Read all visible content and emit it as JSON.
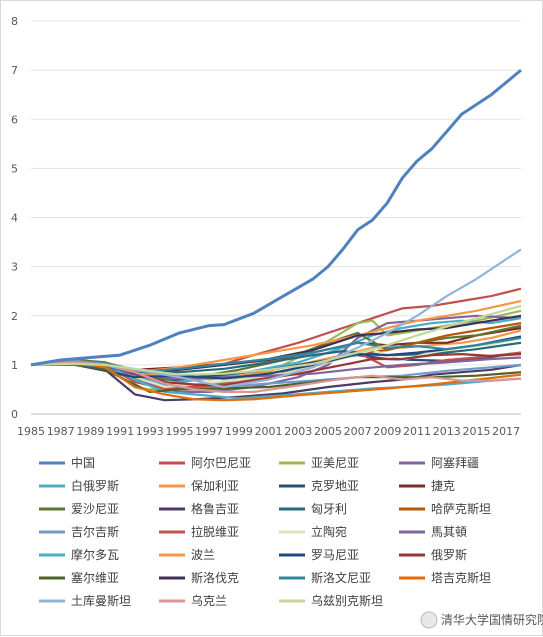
{
  "chart_data": {
    "type": "line",
    "title": "",
    "xlabel": "",
    "ylabel": "",
    "xlim": [
      1985,
      2018
    ],
    "ylim": [
      0,
      8
    ],
    "y_ticks": [
      0,
      1,
      2,
      3,
      4,
      5,
      6,
      7,
      8
    ],
    "x_tick_labels": [
      "1985",
      "1987",
      "1989",
      "1991",
      "1993",
      "1995",
      "1997",
      "1999",
      "2001",
      "2003",
      "2005",
      "2007",
      "2009",
      "2011",
      "2013",
      "2015",
      "2017"
    ],
    "grid": "horizontal",
    "legend_position": "bottom",
    "series": [
      {
        "name": "中国",
        "color": "#4f81bd",
        "x": [
          1985,
          1987,
          1989,
          1991,
          1993,
          1995,
          1997,
          1998,
          2000,
          2002,
          2004,
          2005,
          2006,
          2007,
          2008,
          2009,
          2010,
          2011,
          2012,
          2013,
          2014,
          2015,
          2016,
          2017,
          2018
        ],
        "y": [
          1.0,
          1.1,
          1.15,
          1.2,
          1.4,
          1.65,
          1.8,
          1.82,
          2.05,
          2.4,
          2.75,
          3.0,
          3.35,
          3.75,
          3.95,
          4.3,
          4.8,
          5.15,
          5.4,
          5.75,
          6.1,
          6.3,
          6.5,
          6.75,
          7.0
        ]
      },
      {
        "name": "阿尔巴尼亚",
        "color": "#c0504d",
        "x": [
          1985,
          1988,
          1990,
          1992,
          1994,
          1996,
          1998,
          2000,
          2003,
          2006,
          2008,
          2010,
          2012,
          2014,
          2016,
          2018
        ],
        "y": [
          1.0,
          1.05,
          1.0,
          0.72,
          0.82,
          0.98,
          1.02,
          1.2,
          1.45,
          1.75,
          1.95,
          2.15,
          2.2,
          2.3,
          2.4,
          2.55
        ]
      },
      {
        "name": "亚美尼亚",
        "color": "#9bbb59",
        "x": [
          1985,
          1988,
          1990,
          1992,
          1993,
          1995,
          1998,
          2001,
          2004,
          2007,
          2008,
          2009,
          2011,
          2013,
          2015,
          2018
        ],
        "y": [
          1.0,
          1.1,
          0.98,
          0.55,
          0.5,
          0.55,
          0.65,
          0.85,
          1.3,
          1.85,
          1.9,
          1.6,
          1.7,
          1.8,
          1.9,
          2.1
        ]
      },
      {
        "name": "阿塞拜疆",
        "color": "#8064a2",
        "x": [
          1985,
          1988,
          1990,
          1992,
          1995,
          1997,
          2000,
          2003,
          2005,
          2007,
          2009,
          2011,
          2013,
          2015,
          2018
        ],
        "y": [
          1.0,
          1.05,
          0.95,
          0.7,
          0.45,
          0.45,
          0.55,
          0.75,
          1.0,
          1.55,
          1.85,
          1.9,
          1.95,
          2.0,
          1.95
        ]
      },
      {
        "name": "白俄罗斯",
        "color": "#4bacc6",
        "x": [
          1985,
          1988,
          1990,
          1992,
          1995,
          1997,
          2000,
          2003,
          2006,
          2008,
          2010,
          2012,
          2014,
          2016,
          2018
        ],
        "y": [
          1.0,
          1.1,
          1.05,
          0.9,
          0.65,
          0.72,
          0.88,
          1.05,
          1.35,
          1.6,
          1.75,
          1.85,
          1.9,
          1.85,
          1.95
        ]
      },
      {
        "name": "保加利亚",
        "color": "#f79646",
        "x": [
          1985,
          1988,
          1990,
          1992,
          1995,
          1997,
          2000,
          2003,
          2006,
          2008,
          2010,
          2012,
          2014,
          2016,
          2018
        ],
        "y": [
          1.0,
          1.05,
          0.95,
          0.8,
          0.78,
          0.7,
          0.82,
          1.0,
          1.2,
          1.35,
          1.35,
          1.4,
          1.45,
          1.55,
          1.7
        ]
      },
      {
        "name": "克罗地亚",
        "color": "#2c4d75",
        "x": [
          1985,
          1988,
          1990,
          1992,
          1995,
          1998,
          2001,
          2004,
          2007,
          2009,
          2011,
          2013,
          2015,
          2018
        ],
        "y": [
          1.0,
          1.0,
          0.92,
          0.7,
          0.7,
          0.8,
          0.9,
          1.05,
          1.2,
          1.12,
          1.1,
          1.08,
          1.12,
          1.25
        ]
      },
      {
        "name": "捷克",
        "color": "#772c2a",
        "x": [
          1985,
          1988,
          1990,
          1992,
          1995,
          1998,
          2001,
          2004,
          2007,
          2009,
          2011,
          2013,
          2015,
          2018
        ],
        "y": [
          1.0,
          1.05,
          1.02,
          0.9,
          0.95,
          1.0,
          1.1,
          1.25,
          1.45,
          1.4,
          1.45,
          1.45,
          1.6,
          1.75
        ]
      },
      {
        "name": "爱沙尼亚",
        "color": "#5f7530",
        "x": [
          1985,
          1988,
          1990,
          1992,
          1994,
          1996,
          1999,
          2002,
          2005,
          2007,
          2009,
          2011,
          2013,
          2015,
          2018
        ],
        "y": [
          1.0,
          1.1,
          1.05,
          0.8,
          0.7,
          0.75,
          0.9,
          1.1,
          1.45,
          1.65,
          1.3,
          1.45,
          1.55,
          1.6,
          1.8
        ]
      },
      {
        "name": "格鲁吉亚",
        "color": "#4d3b62",
        "x": [
          1985,
          1988,
          1990,
          1992,
          1994,
          1996,
          1999,
          2002,
          2005,
          2008,
          2010,
          2012,
          2014,
          2016,
          2018
        ],
        "y": [
          1.0,
          1.05,
          0.9,
          0.4,
          0.28,
          0.3,
          0.35,
          0.42,
          0.55,
          0.65,
          0.7,
          0.8,
          0.85,
          0.9,
          1.0
        ]
      },
      {
        "name": "匈牙利",
        "color": "#276a7c",
        "x": [
          1985,
          1988,
          1990,
          1992,
          1995,
          1998,
          2001,
          2004,
          2006,
          2009,
          2012,
          2015,
          2018
        ],
        "y": [
          1.0,
          1.02,
          0.98,
          0.85,
          0.85,
          0.92,
          1.05,
          1.2,
          1.28,
          1.2,
          1.22,
          1.32,
          1.45
        ]
      },
      {
        "name": "哈萨克斯坦",
        "color": "#b65708",
        "x": [
          1985,
          1988,
          1990,
          1992,
          1995,
          1998,
          2001,
          2004,
          2007,
          2009,
          2011,
          2013,
          2015,
          2018
        ],
        "y": [
          1.0,
          1.02,
          0.95,
          0.8,
          0.55,
          0.58,
          0.75,
          1.0,
          1.25,
          1.3,
          1.45,
          1.6,
          1.7,
          1.85
        ]
      },
      {
        "name": "吉尔吉斯",
        "color": "#729aca",
        "x": [
          1985,
          1988,
          1990,
          1992,
          1995,
          1998,
          2001,
          2004,
          2007,
          2010,
          2013,
          2016,
          2018
        ],
        "y": [
          1.0,
          1.08,
          1.02,
          0.8,
          0.5,
          0.55,
          0.62,
          0.68,
          0.75,
          0.78,
          0.88,
          0.95,
          1.0
        ]
      },
      {
        "name": "拉脱维亚",
        "color": "#c0504d",
        "x": [
          1985,
          1988,
          1990,
          1992,
          1994,
          1996,
          1999,
          2002,
          2005,
          2007,
          2009,
          2011,
          2013,
          2015,
          2018
        ],
        "y": [
          1.0,
          1.05,
          1.0,
          0.65,
          0.52,
          0.55,
          0.65,
          0.8,
          1.05,
          1.25,
          0.95,
          1.0,
          1.1,
          1.15,
          1.25
        ]
      },
      {
        "name": "立陶宛",
        "color": "#d7e4bd",
        "x": [
          1985,
          1988,
          1990,
          1992,
          1994,
          1996,
          1999,
          2002,
          2005,
          2008,
          2010,
          2012,
          2014,
          2016,
          2018
        ],
        "y": [
          1.0,
          1.05,
          1.0,
          0.75,
          0.55,
          0.6,
          0.7,
          0.82,
          1.05,
          1.3,
          1.1,
          1.25,
          1.35,
          1.42,
          1.55
        ]
      },
      {
        "name": "馬其頓",
        "color": "#8064a2",
        "x": [
          1985,
          1988,
          1990,
          1992,
          1995,
          1998,
          2001,
          2004,
          2007,
          2010,
          2013,
          2016,
          2018
        ],
        "y": [
          1.0,
          1.0,
          0.92,
          0.8,
          0.72,
          0.75,
          0.78,
          0.82,
          0.92,
          1.0,
          1.05,
          1.12,
          1.15
        ]
      },
      {
        "name": "摩尔多瓦",
        "color": "#4bacc6",
        "x": [
          1985,
          1988,
          1990,
          1992,
          1994,
          1996,
          1999,
          2002,
          2005,
          2008,
          2010,
          2013,
          2016,
          2018
        ],
        "y": [
          1.0,
          1.05,
          1.0,
          0.7,
          0.45,
          0.4,
          0.32,
          0.38,
          0.45,
          0.52,
          0.55,
          0.6,
          0.68,
          0.72
        ]
      },
      {
        "name": "波兰",
        "color": "#f79646",
        "x": [
          1985,
          1988,
          1990,
          1992,
          1995,
          1998,
          2001,
          2004,
          2007,
          2009,
          2011,
          2013,
          2015,
          2018
        ],
        "y": [
          1.0,
          1.05,
          0.95,
          0.85,
          0.95,
          1.1,
          1.25,
          1.4,
          1.6,
          1.75,
          1.9,
          2.0,
          2.1,
          2.3
        ]
      },
      {
        "name": "罗马尼亚",
        "color": "#1f497d",
        "x": [
          1985,
          1988,
          1990,
          1992,
          1995,
          1998,
          2001,
          2004,
          2007,
          2009,
          2011,
          2013,
          2015,
          2018
        ],
        "y": [
          1.0,
          1.0,
          0.88,
          0.75,
          0.78,
          0.72,
          0.82,
          1.0,
          1.22,
          1.2,
          1.25,
          1.32,
          1.4,
          1.58
        ]
      },
      {
        "name": "俄罗斯",
        "color": "#953735",
        "x": [
          1985,
          1988,
          1990,
          1992,
          1994,
          1996,
          1998,
          2000,
          2003,
          2006,
          2008,
          2010,
          2012,
          2014,
          2016,
          2018
        ],
        "y": [
          1.0,
          1.05,
          1.0,
          0.82,
          0.65,
          0.6,
          0.58,
          0.68,
          0.82,
          1.0,
          1.12,
          1.12,
          1.2,
          1.22,
          1.18,
          1.22
        ]
      },
      {
        "name": "塞尔维亚",
        "color": "#4f6228",
        "x": [
          1985,
          1988,
          1990,
          1992,
          1993,
          1995,
          1998,
          2001,
          2004,
          2007,
          2009,
          2012,
          2015,
          2018
        ],
        "y": [
          1.0,
          1.0,
          0.9,
          0.6,
          0.45,
          0.5,
          0.52,
          0.55,
          0.65,
          0.75,
          0.75,
          0.75,
          0.78,
          0.85
        ]
      },
      {
        "name": "斯洛伐克",
        "color": "#3f3151",
        "x": [
          1985,
          1988,
          1990,
          1992,
          1995,
          1998,
          2001,
          2004,
          2007,
          2009,
          2011,
          2013,
          2015,
          2018
        ],
        "y": [
          1.0,
          1.05,
          1.0,
          0.85,
          0.9,
          1.0,
          1.12,
          1.3,
          1.6,
          1.65,
          1.72,
          1.75,
          1.85,
          2.0
        ]
      },
      {
        "name": "斯洛文尼亚",
        "color": "#31859c",
        "x": [
          1985,
          1988,
          1990,
          1992,
          1995,
          1998,
          2001,
          2004,
          2007,
          2009,
          2011,
          2013,
          2015,
          2018
        ],
        "y": [
          1.0,
          1.02,
          0.95,
          0.85,
          0.92,
          1.02,
          1.12,
          1.25,
          1.45,
          1.35,
          1.38,
          1.32,
          1.4,
          1.55
        ]
      },
      {
        "name": "塔吉克斯坦",
        "color": "#e46c0a",
        "x": [
          1985,
          1988,
          1990,
          1992,
          1994,
          1996,
          1998,
          2000,
          2003,
          2006,
          2009,
          2012,
          2015,
          2018
        ],
        "y": [
          1.0,
          1.05,
          0.95,
          0.55,
          0.4,
          0.3,
          0.28,
          0.3,
          0.38,
          0.45,
          0.52,
          0.6,
          0.7,
          0.8
        ]
      },
      {
        "name": "土库曼斯坦",
        "color": "#95b3d7",
        "x": [
          1985,
          1988,
          1990,
          1992,
          1995,
          1998,
          2001,
          2004,
          2007,
          2009,
          2011,
          2013,
          2015,
          2018
        ],
        "y": [
          1.0,
          1.05,
          1.0,
          0.9,
          0.75,
          0.55,
          0.7,
          0.95,
          1.35,
          1.65,
          2.0,
          2.4,
          2.75,
          3.35
        ]
      },
      {
        "name": "乌克兰",
        "color": "#d99694",
        "x": [
          1985,
          1988,
          1990,
          1992,
          1994,
          1996,
          1998,
          2000,
          2003,
          2006,
          2008,
          2010,
          2012,
          2014,
          2016,
          2018
        ],
        "y": [
          1.0,
          1.05,
          1.0,
          0.85,
          0.62,
          0.5,
          0.45,
          0.45,
          0.58,
          0.72,
          0.78,
          0.7,
          0.75,
          0.68,
          0.68,
          0.72
        ]
      },
      {
        "name": "乌兹别克斯坦",
        "color": "#c3d69b",
        "x": [
          1985,
          1988,
          1990,
          1992,
          1995,
          1998,
          2001,
          2004,
          2007,
          2009,
          2011,
          2013,
          2015,
          2018
        ],
        "y": [
          1.0,
          1.02,
          1.0,
          0.92,
          0.8,
          0.82,
          0.9,
          1.02,
          1.25,
          1.4,
          1.6,
          1.78,
          1.95,
          2.2
        ]
      }
    ],
    "watermark": "清华大学国情研究院"
  }
}
